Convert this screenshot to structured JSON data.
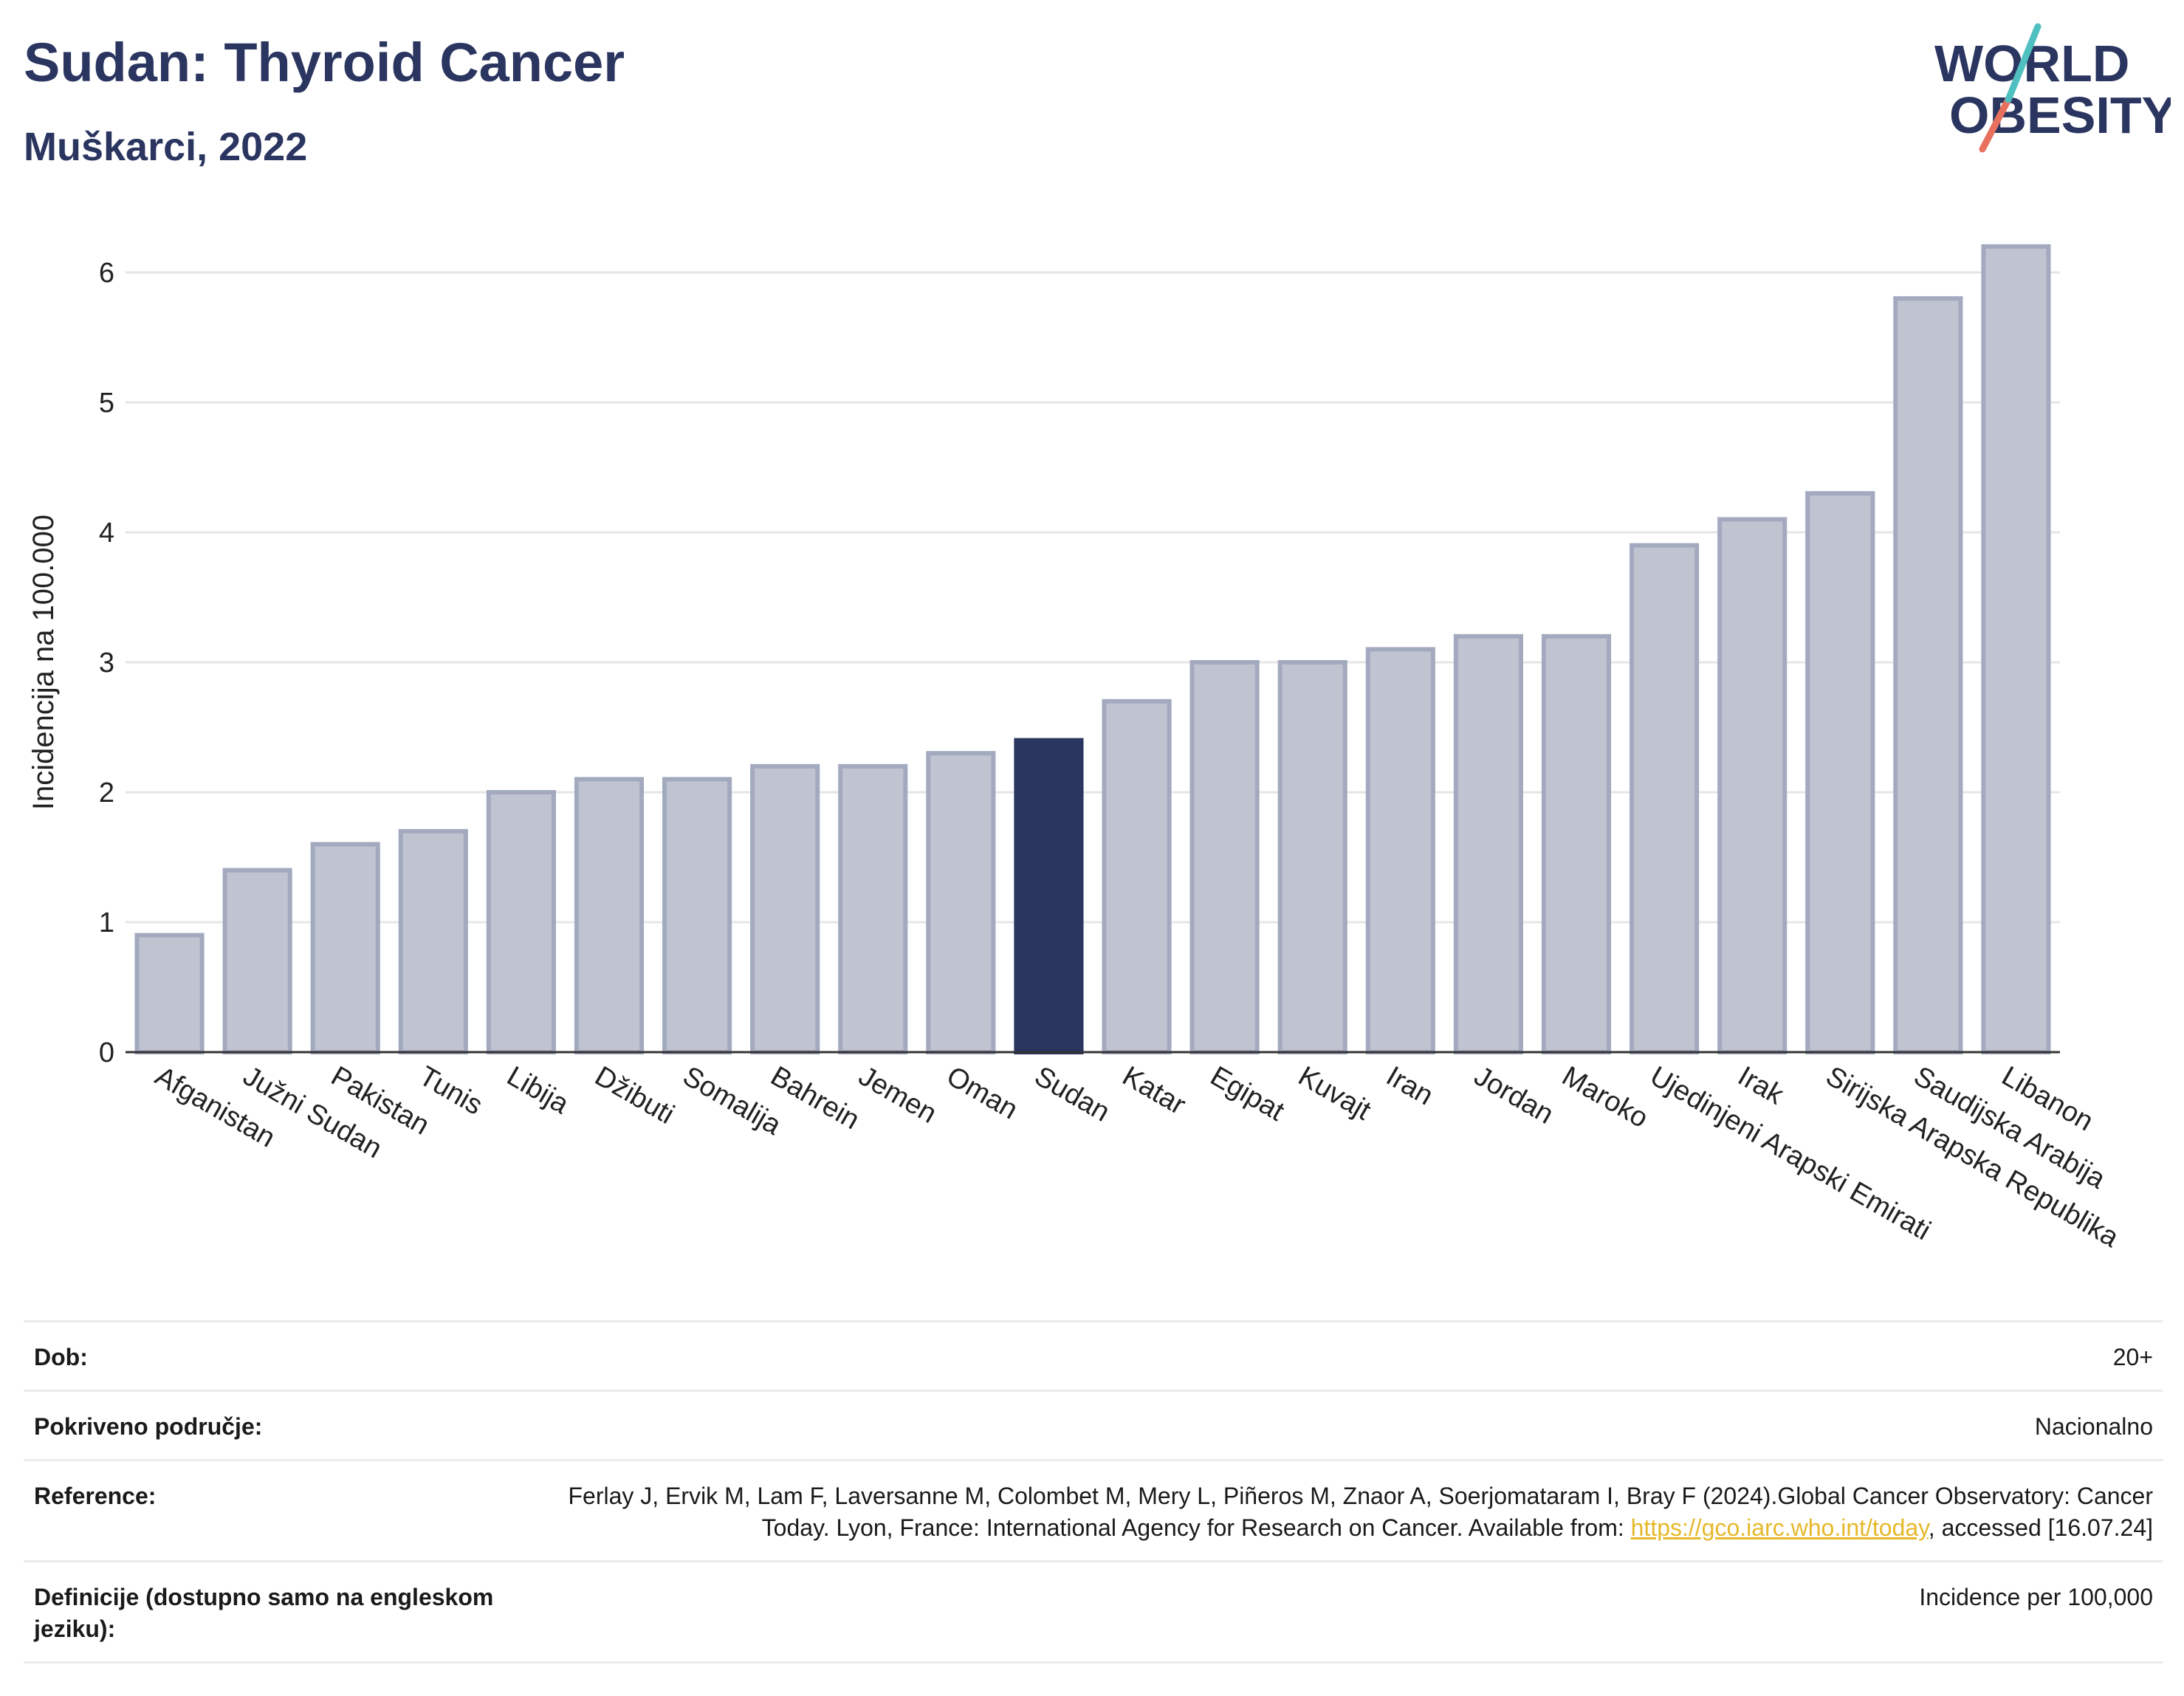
{
  "header": {
    "title": "Sudan: Thyroid Cancer",
    "subtitle": "Muškarci, 2022"
  },
  "logo": {
    "line1": "WORLD",
    "line2": "OBESITY"
  },
  "colors": {
    "highlight": "#2a3560",
    "bar": "#c0c4d1",
    "bar_border": "#a3a9bf",
    "title": "#2a3560",
    "link": "#e6b82a"
  },
  "chart_data": {
    "type": "bar",
    "categories": [
      "Afganistan",
      "Južni Sudan",
      "Pakistan",
      "Tunis",
      "Libija",
      "Džibuti",
      "Somalija",
      "Bahrein",
      "Jemen",
      "Oman",
      "Sudan",
      "Katar",
      "Egipat",
      "Kuvajt",
      "Iran",
      "Jordan",
      "Maroko",
      "Ujedinjeni Arapski Emirati",
      "Irak",
      "Sirijska Arapska Republika",
      "Saudijska Arabija",
      "Libanon"
    ],
    "values": [
      0.9,
      1.4,
      1.6,
      1.7,
      2.0,
      2.1,
      2.1,
      2.2,
      2.2,
      2.3,
      2.4,
      2.7,
      3.0,
      3.0,
      3.1,
      3.2,
      3.2,
      3.9,
      4.1,
      4.3,
      5.8,
      6.2
    ],
    "highlight": "Sudan",
    "ylabel": "Incidencija na 100.000",
    "xlabel": "",
    "ylim": [
      0,
      6.4
    ],
    "yticks": [
      0,
      1,
      2,
      3,
      4,
      5,
      6
    ],
    "grid": true
  },
  "info": {
    "age_label": "Dob:",
    "age_value": "20+",
    "coverage_label": "Pokriveno područje:",
    "coverage_value": "Nacionalno",
    "reference_label": "Reference:",
    "reference_text": "Ferlay J, Ervik M, Lam F, Laversanne M, Colombet M, Mery L, Piñeros M, Znaor A, Soerjomataram I, Bray F (2024).Global Cancer Observatory: Cancer Today. Lyon, France: International Agency for Research on Cancer. Available from:",
    "reference_link": "https://gco.iarc.who.int/today",
    "reference_suffix": ", accessed [16.07.24]",
    "definition_label": "Definicije (dostupno samo na engleskom jeziku):",
    "definition_value": "Incidence per 100,000"
  }
}
